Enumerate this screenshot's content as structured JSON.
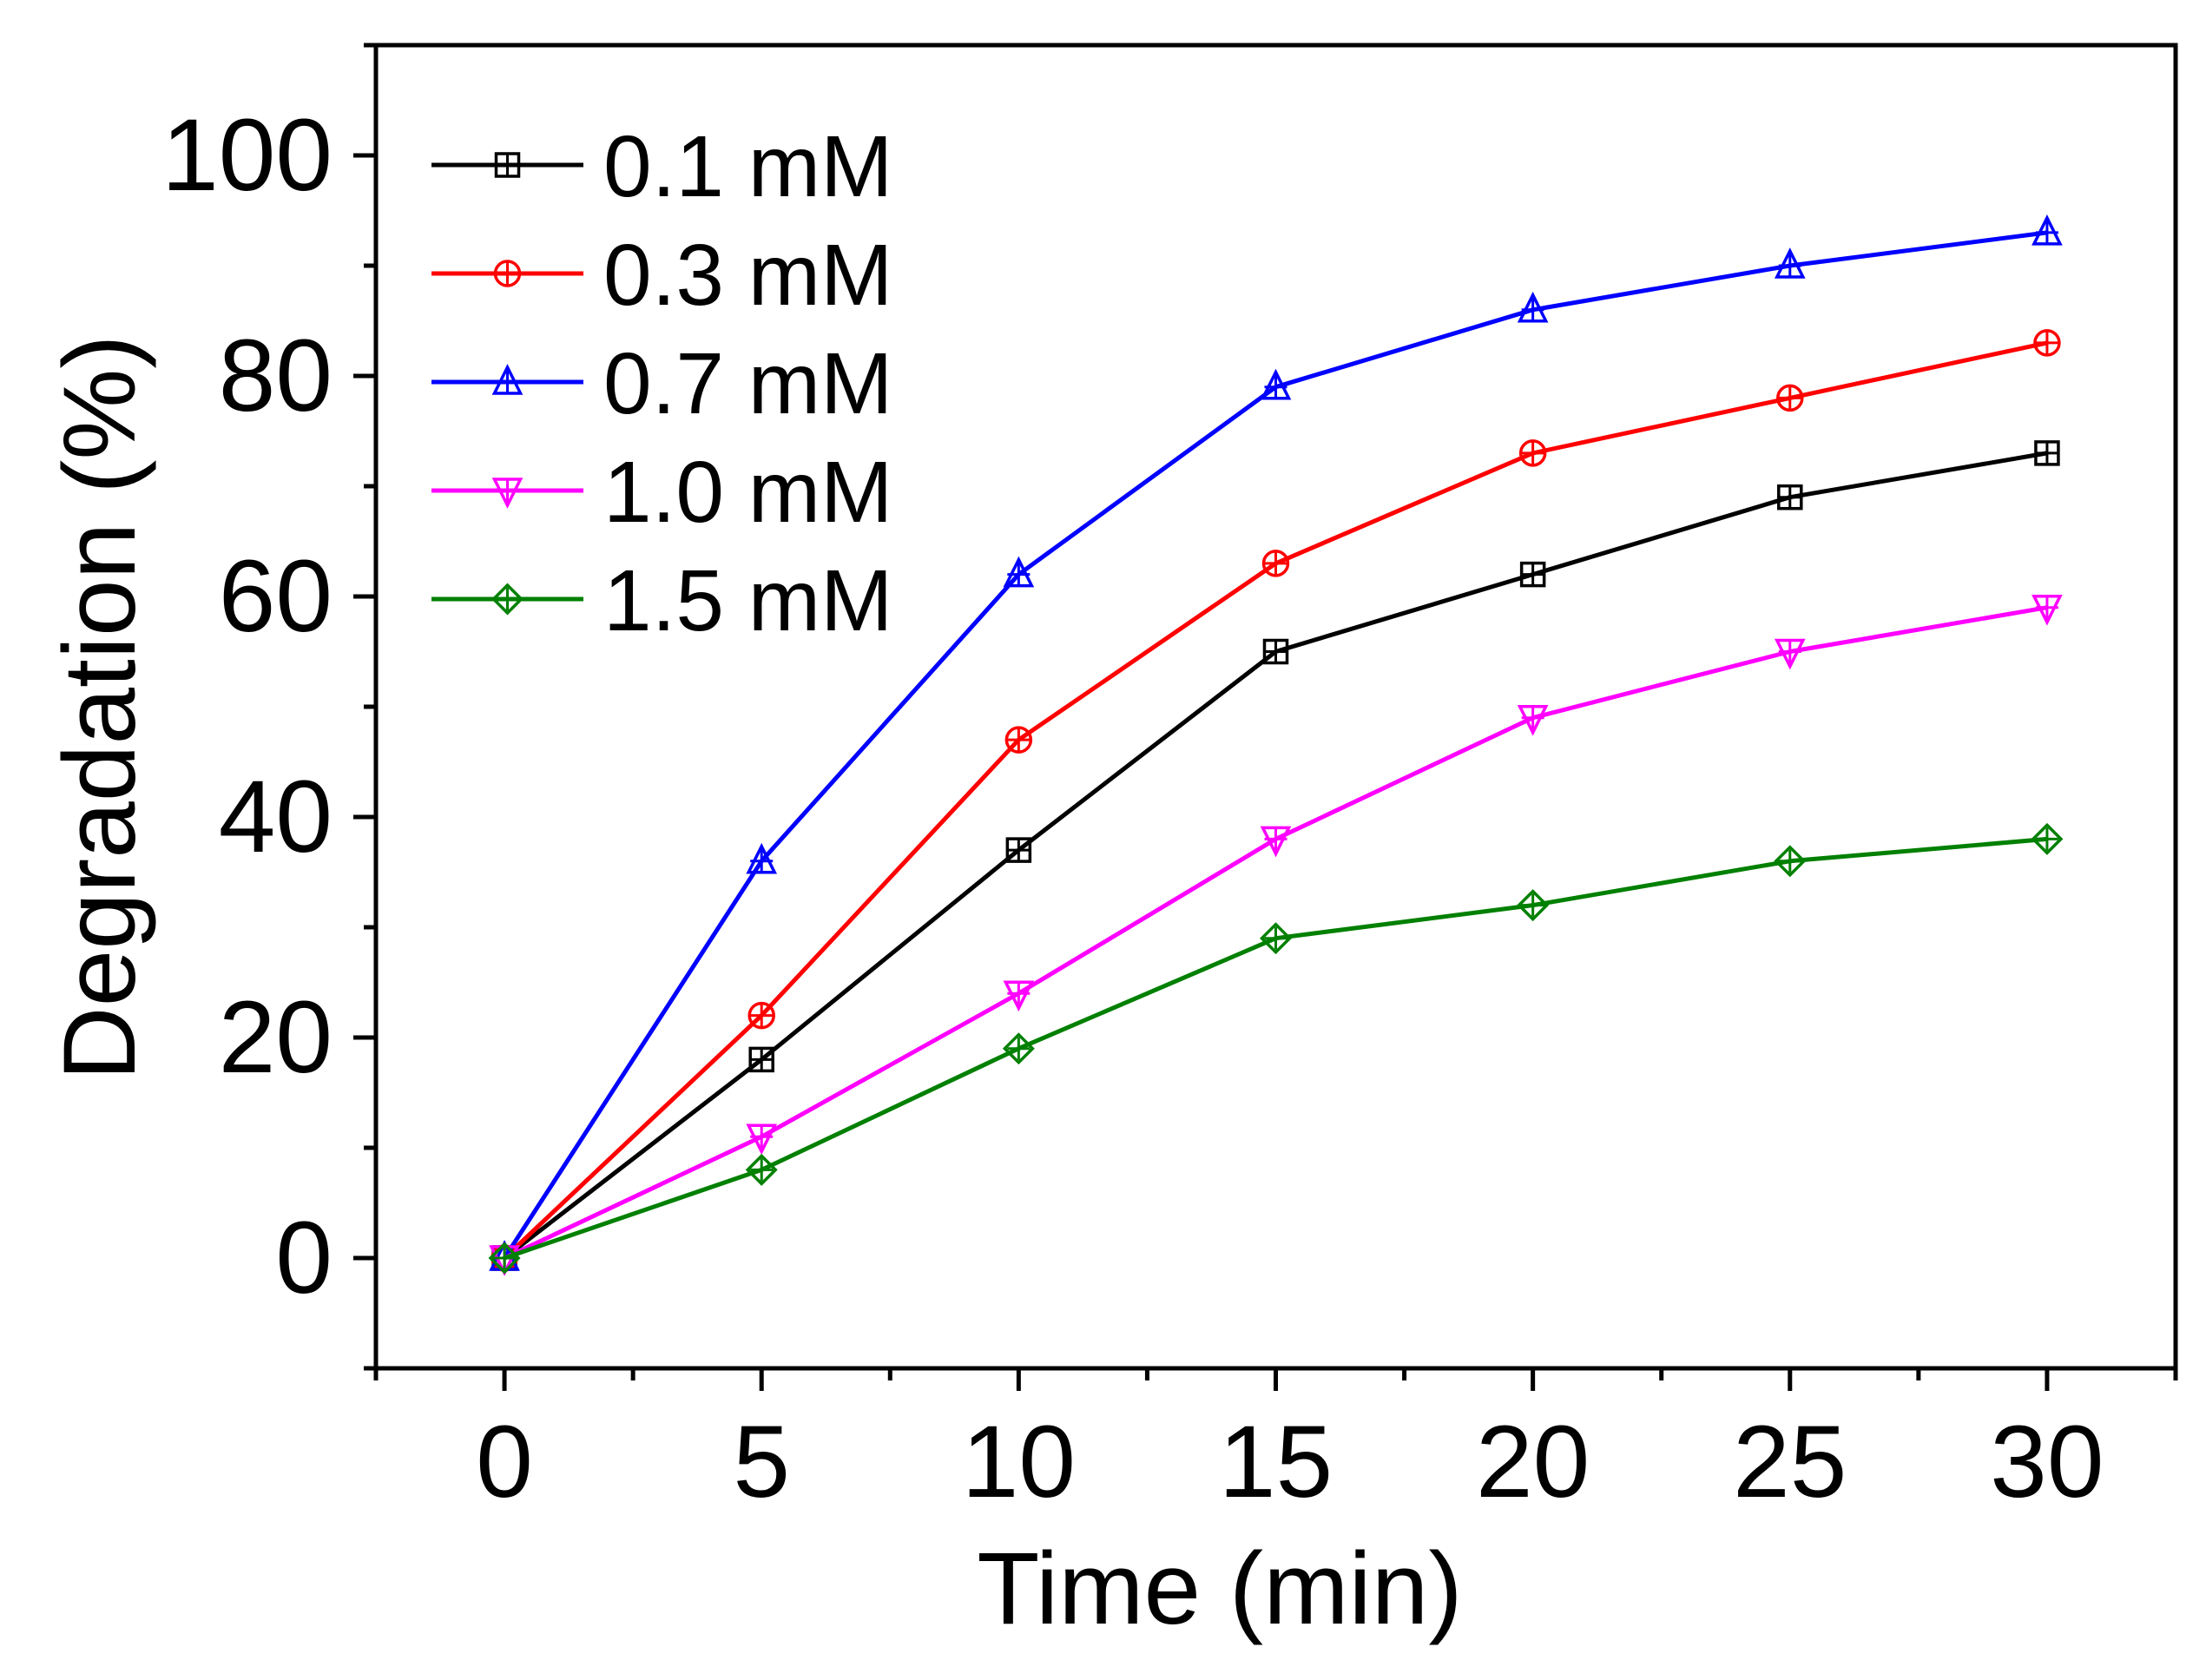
{
  "chart_data": {
    "type": "line",
    "title": "",
    "xlabel": "Time (min)",
    "ylabel": "Degradation (%)",
    "xlim": [
      -2.5,
      32.5
    ],
    "ylim": [
      -10,
      110
    ],
    "xticks": [
      0,
      5,
      10,
      15,
      20,
      25,
      30
    ],
    "yticks": [
      0,
      20,
      40,
      60,
      80,
      100
    ],
    "grid": false,
    "legend_position": "top-left",
    "x": [
      0,
      5,
      10,
      15,
      20,
      25,
      30
    ],
    "series": [
      {
        "name": "0.1 mM",
        "color": "#000000",
        "marker": "square",
        "values": [
          0,
          18,
          37,
          55,
          62,
          69,
          73
        ]
      },
      {
        "name": "0.3 mM",
        "color": "#ff0000",
        "marker": "circle",
        "values": [
          0,
          22,
          47,
          63,
          73,
          78,
          83
        ]
      },
      {
        "name": "0.7 mM",
        "color": "#0000ff",
        "marker": "triangle-up",
        "values": [
          0,
          36,
          62,
          79,
          86,
          90,
          93
        ]
      },
      {
        "name": "1.0 mM",
        "color": "#ff00ff",
        "marker": "triangle-down",
        "values": [
          0,
          11,
          24,
          38,
          49,
          55,
          59
        ]
      },
      {
        "name": "1.5 mM",
        "color": "#008000",
        "marker": "diamond",
        "values": [
          0,
          8,
          19,
          29,
          32,
          36,
          38
        ]
      }
    ]
  }
}
